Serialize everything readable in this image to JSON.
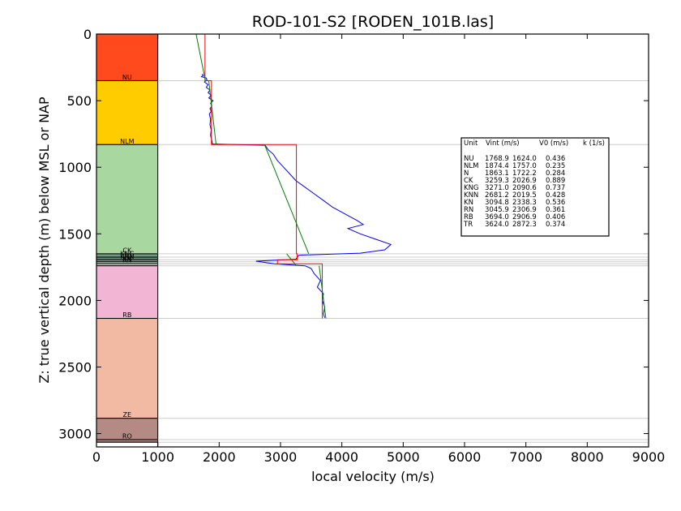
{
  "chart_data": {
    "type": "line",
    "title": "ROD-101-S2 [RODEN_101B.las]",
    "xlabel": "local velocity (m/s)",
    "ylabel": "Z: true vertical depth (m) below MSL or NAP",
    "xlim": [
      0,
      9000
    ],
    "ylim": [
      3100,
      0
    ],
    "x_ticks": [
      0,
      1000,
      2000,
      3000,
      4000,
      5000,
      6000,
      7000,
      8000,
      9000
    ],
    "y_ticks": [
      0,
      500,
      1000,
      1500,
      2000,
      2500,
      3000
    ],
    "grid": false,
    "colors": {
      "log": "#0000ff",
      "interval_velocity": "#ff0000",
      "linear_fit": "#008000",
      "boundary_lines": "#cccccc"
    },
    "lithology_column": {
      "x_range": [
        0,
        1000
      ],
      "units": [
        {
          "label": "",
          "top": 0,
          "base": 350,
          "color": "#ff4a1e"
        },
        {
          "label": "NU",
          "top": 350,
          "base": 830,
          "color": "#ffcc00"
        },
        {
          "label": "NLM",
          "top": 830,
          "base": 1650,
          "color": "#a8d8a0"
        },
        {
          "label": "CK",
          "top": 1650,
          "base": 1675,
          "color": "#6e9a82"
        },
        {
          "label": "KNG",
          "top": 1675,
          "base": 1695,
          "color": "#5f8c74"
        },
        {
          "label": "KNN",
          "top": 1695,
          "base": 1710,
          "color": "#80a88e"
        },
        {
          "label": "KN",
          "top": 1710,
          "base": 1725,
          "color": "#b7d7bd"
        },
        {
          "label": "RN",
          "top": 1725,
          "base": 1740,
          "color": "#dde7dd"
        },
        {
          "label": "",
          "top": 1740,
          "base": 2135,
          "color": "#f2b6d4"
        },
        {
          "label": "RB",
          "top": 2135,
          "base": 2885,
          "color": "#f2b9a3"
        },
        {
          "label": "ZE",
          "top": 2885,
          "base": 3045,
          "color": "#b38a84"
        },
        {
          "label": "RO",
          "top": 3045,
          "base": 3065,
          "color": "#a87f79"
        },
        {
          "label": "",
          "top": 3065,
          "base": 3100,
          "color": "#ffffff"
        }
      ]
    },
    "boundary_depths": [
      350,
      830,
      1650,
      1675,
      1695,
      1710,
      1725,
      1740,
      2135,
      2885,
      3045,
      3065
    ],
    "interval_velocity_steps": [
      {
        "top": 0,
        "base": 350,
        "v": 1769
      },
      {
        "top": 350,
        "base": 830,
        "v": 1874
      },
      {
        "top": 830,
        "base": 1650,
        "v": 3259
      },
      {
        "top": 1650,
        "base": 1695,
        "v": 3271
      },
      {
        "top": 1695,
        "base": 1725,
        "v": 2950
      },
      {
        "top": 1725,
        "base": 2135,
        "v": 3680
      }
    ],
    "linear_fits": [
      {
        "z": [
          0,
          350
        ],
        "v": [
          1624,
          1775
        ]
      },
      {
        "z": [
          350,
          830
        ],
        "v": [
          1830,
          1950
        ]
      },
      {
        "z": [
          830,
          1650
        ],
        "v": [
          2740,
          3460
        ]
      },
      {
        "z": [
          1650,
          1740
        ],
        "v": [
          3100,
          3260
        ]
      },
      {
        "z": [
          1740,
          2135
        ],
        "v": [
          3630,
          3740
        ]
      }
    ],
    "velocity_log": [
      [
        1720,
        300
      ],
      [
        1740,
        310
      ],
      [
        1710,
        320
      ],
      [
        1790,
        330
      ],
      [
        1800,
        345
      ],
      [
        1760,
        360
      ],
      [
        1820,
        380
      ],
      [
        1790,
        400
      ],
      [
        1850,
        420
      ],
      [
        1820,
        440
      ],
      [
        1870,
        460
      ],
      [
        1830,
        480
      ],
      [
        1900,
        500
      ],
      [
        1860,
        520
      ],
      [
        1880,
        540
      ],
      [
        1850,
        560
      ],
      [
        1870,
        580
      ],
      [
        1840,
        600
      ],
      [
        1860,
        640
      ],
      [
        1850,
        680
      ],
      [
        1870,
        720
      ],
      [
        1860,
        760
      ],
      [
        1880,
        800
      ],
      [
        1890,
        825
      ],
      [
        2750,
        835
      ],
      [
        2800,
        870
      ],
      [
        2880,
        900
      ],
      [
        2950,
        950
      ],
      [
        3050,
        1000
      ],
      [
        3150,
        1050
      ],
      [
        3250,
        1100
      ],
      [
        3400,
        1150
      ],
      [
        3550,
        1200
      ],
      [
        3700,
        1250
      ],
      [
        3850,
        1300
      ],
      [
        4050,
        1350
      ],
      [
        4250,
        1400
      ],
      [
        4350,
        1430
      ],
      [
        4100,
        1460
      ],
      [
        4300,
        1500
      ],
      [
        4550,
        1540
      ],
      [
        4800,
        1580
      ],
      [
        4700,
        1620
      ],
      [
        4300,
        1645
      ],
      [
        3300,
        1660
      ],
      [
        3250,
        1690
      ],
      [
        2600,
        1705
      ],
      [
        2900,
        1725
      ],
      [
        3400,
        1740
      ],
      [
        3500,
        1760
      ],
      [
        3550,
        1800
      ],
      [
        3650,
        1850
      ],
      [
        3600,
        1900
      ],
      [
        3700,
        1950
      ],
      [
        3680,
        2000
      ],
      [
        3720,
        2050
      ],
      [
        3700,
        2100
      ],
      [
        3720,
        2130
      ]
    ],
    "table": {
      "headers": [
        "Unit",
        "Vint (m/s)",
        "V0 (m/s)",
        "k (1/s)"
      ],
      "rows": [
        [
          "NU",
          "1768.9",
          "1624.0",
          "0.436"
        ],
        [
          "NLM",
          "1874.4",
          "1757.0",
          "0.235"
        ],
        [
          "N",
          "1863.1",
          "1722.2",
          "0.284"
        ],
        [
          "CK",
          "3259.3",
          "2026.9",
          "0.889"
        ],
        [
          "KNG",
          "3271.0",
          "2090.6",
          "0.737"
        ],
        [
          "KNN",
          "2681.2",
          "2019.5",
          "0.428"
        ],
        [
          "KN",
          "3094.8",
          "2338.3",
          "0.536"
        ],
        [
          "RN",
          "3045.9",
          "2306.9",
          "0.361"
        ],
        [
          "RB",
          "3694.0",
          "2906.9",
          "0.406"
        ],
        [
          "TR",
          "3624.0",
          "2872.3",
          "0.374"
        ]
      ]
    }
  }
}
